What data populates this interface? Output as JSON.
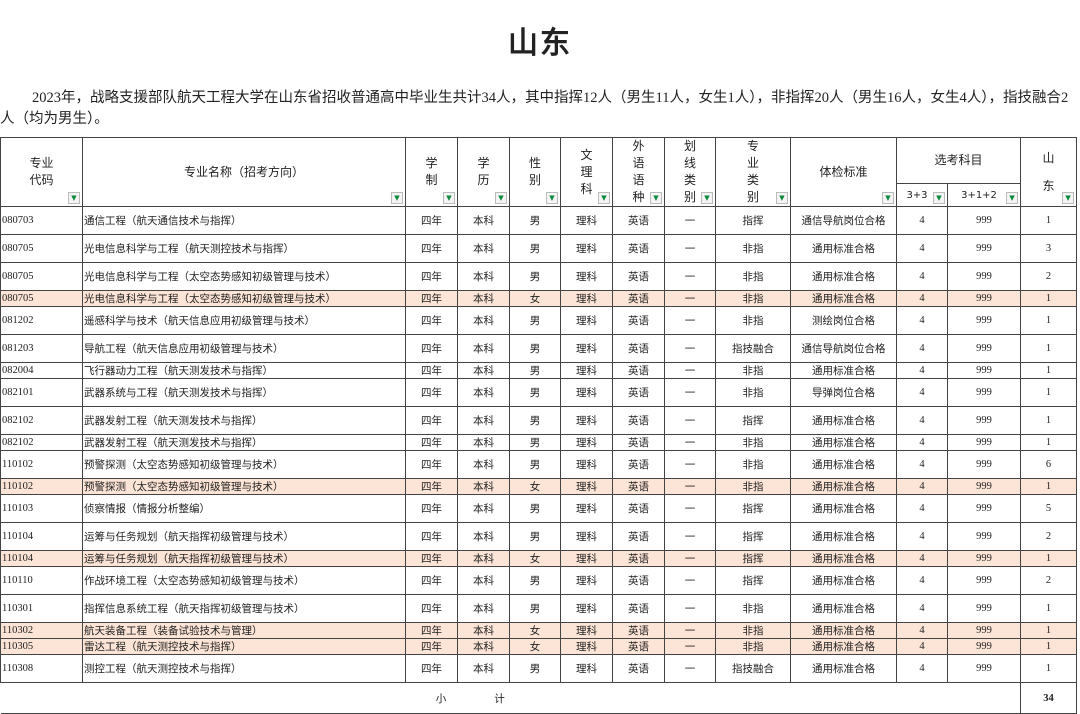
{
  "title": "山东",
  "intro": "2023年，战略支援部队航天工程大学在山东省招收普通高中毕业生共计34人，其中指挥12人（男生11人，女生1人），非指挥20人（男生16人，女生4人），指技融合2人（均为男生）。",
  "headers": {
    "code": "专业代码",
    "name": "专业名称（招考方向）",
    "duration": "学制",
    "degree": "学历",
    "sex": "性别",
    "track": "文理科",
    "language": "外语语种",
    "line": "划线类别",
    "type": "专业类别",
    "physical": "体检标准",
    "subjects": "选考科目",
    "s33": "3+3",
    "s312": "3+1+2",
    "province": "山东"
  },
  "filter_icon": "dropdown-filter-arrow",
  "highlight_color": "#fce4d6",
  "rows": [
    {
      "code": "080703",
      "name": "通信工程（航天通信技术与指挥）",
      "duration": "四年",
      "degree": "本科",
      "sex": "男",
      "track": "理科",
      "language": "英语",
      "line": "一",
      "type": "指挥",
      "physical": "通信导航岗位合格",
      "s33": "4",
      "s312": "999",
      "count": "1"
    },
    {
      "code": "080705",
      "name": "光电信息科学与工程（航天测控技术与指挥）",
      "duration": "四年",
      "degree": "本科",
      "sex": "男",
      "track": "理科",
      "language": "英语",
      "line": "一",
      "type": "非指",
      "physical": "通用标准合格",
      "s33": "4",
      "s312": "999",
      "count": "3"
    },
    {
      "code": "080705",
      "name": "光电信息科学与工程（太空态势感知初级管理与技术）",
      "duration": "四年",
      "degree": "本科",
      "sex": "男",
      "track": "理科",
      "language": "英语",
      "line": "一",
      "type": "非指",
      "physical": "通用标准合格",
      "s33": "4",
      "s312": "999",
      "count": "2"
    },
    {
      "code": "080705",
      "name": "光电信息科学与工程（太空态势感知初级管理与技术）",
      "duration": "四年",
      "degree": "本科",
      "sex": "女",
      "track": "理科",
      "language": "英语",
      "line": "一",
      "type": "非指",
      "physical": "通用标准合格",
      "s33": "4",
      "s312": "999",
      "count": "1"
    },
    {
      "code": "081202",
      "name": "遥感科学与技术（航天信息应用初级管理与技术）",
      "duration": "四年",
      "degree": "本科",
      "sex": "男",
      "track": "理科",
      "language": "英语",
      "line": "一",
      "type": "非指",
      "physical": "测绘岗位合格",
      "s33": "4",
      "s312": "999",
      "count": "1"
    },
    {
      "code": "081203",
      "name": "导航工程（航天信息应用初级管理与技术）",
      "duration": "四年",
      "degree": "本科",
      "sex": "男",
      "track": "理科",
      "language": "英语",
      "line": "一",
      "type": "指技融合",
      "physical": "通信导航岗位合格",
      "s33": "4",
      "s312": "999",
      "count": "1"
    },
    {
      "code": "082004",
      "name": "飞行器动力工程（航天测发技术与指挥）",
      "duration": "四年",
      "degree": "本科",
      "sex": "男",
      "track": "理科",
      "language": "英语",
      "line": "一",
      "type": "非指",
      "physical": "通用标准合格",
      "s33": "4",
      "s312": "999",
      "count": "1"
    },
    {
      "code": "082101",
      "name": "武器系统与工程（航天测发技术与指挥）",
      "duration": "四年",
      "degree": "本科",
      "sex": "男",
      "track": "理科",
      "language": "英语",
      "line": "一",
      "type": "非指",
      "physical": "导弹岗位合格",
      "s33": "4",
      "s312": "999",
      "count": "1"
    },
    {
      "code": "082102",
      "name": "武器发射工程（航天测发技术与指挥）",
      "duration": "四年",
      "degree": "本科",
      "sex": "男",
      "track": "理科",
      "language": "英语",
      "line": "一",
      "type": "指挥",
      "physical": "通用标准合格",
      "s33": "4",
      "s312": "999",
      "count": "1"
    },
    {
      "code": "082102",
      "name": "武器发射工程（航天测发技术与指挥）",
      "duration": "四年",
      "degree": "本科",
      "sex": "男",
      "track": "理科",
      "language": "英语",
      "line": "一",
      "type": "非指",
      "physical": "通用标准合格",
      "s33": "4",
      "s312": "999",
      "count": "1"
    },
    {
      "code": "110102",
      "name": "预警探测（太空态势感知初级管理与技术）",
      "duration": "四年",
      "degree": "本科",
      "sex": "男",
      "track": "理科",
      "language": "英语",
      "line": "一",
      "type": "非指",
      "physical": "通用标准合格",
      "s33": "4",
      "s312": "999",
      "count": "6"
    },
    {
      "code": "110102",
      "name": "预警探测（太空态势感知初级管理与技术）",
      "duration": "四年",
      "degree": "本科",
      "sex": "女",
      "track": "理科",
      "language": "英语",
      "line": "一",
      "type": "非指",
      "physical": "通用标准合格",
      "s33": "4",
      "s312": "999",
      "count": "1"
    },
    {
      "code": "110103",
      "name": "侦察情报（情报分析整编）",
      "duration": "四年",
      "degree": "本科",
      "sex": "男",
      "track": "理科",
      "language": "英语",
      "line": "一",
      "type": "指挥",
      "physical": "通用标准合格",
      "s33": "4",
      "s312": "999",
      "count": "5"
    },
    {
      "code": "110104",
      "name": "运筹与任务规划（航天指挥初级管理与技术）",
      "duration": "四年",
      "degree": "本科",
      "sex": "男",
      "track": "理科",
      "language": "英语",
      "line": "一",
      "type": "指挥",
      "physical": "通用标准合格",
      "s33": "4",
      "s312": "999",
      "count": "2"
    },
    {
      "code": "110104",
      "name": "运筹与任务规划（航天指挥初级管理与技术）",
      "duration": "四年",
      "degree": "本科",
      "sex": "女",
      "track": "理科",
      "language": "英语",
      "line": "一",
      "type": "指挥",
      "physical": "通用标准合格",
      "s33": "4",
      "s312": "999",
      "count": "1"
    },
    {
      "code": "110110",
      "name": "作战环境工程（太空态势感知初级管理与技术）",
      "duration": "四年",
      "degree": "本科",
      "sex": "男",
      "track": "理科",
      "language": "英语",
      "line": "一",
      "type": "指挥",
      "physical": "通用标准合格",
      "s33": "4",
      "s312": "999",
      "count": "2"
    },
    {
      "code": "110301",
      "name": "指挥信息系统工程（航天指挥初级管理与技术）",
      "duration": "四年",
      "degree": "本科",
      "sex": "男",
      "track": "理科",
      "language": "英语",
      "line": "一",
      "type": "非指",
      "physical": "通用标准合格",
      "s33": "4",
      "s312": "999",
      "count": "1"
    },
    {
      "code": "110302",
      "name": "航天装备工程（装备试验技术与管理）",
      "duration": "四年",
      "degree": "本科",
      "sex": "女",
      "track": "理科",
      "language": "英语",
      "line": "一",
      "type": "非指",
      "physical": "通用标准合格",
      "s33": "4",
      "s312": "999",
      "count": "1"
    },
    {
      "code": "110305",
      "name": "雷达工程（航天测控技术与指挥）",
      "duration": "四年",
      "degree": "本科",
      "sex": "女",
      "track": "理科",
      "language": "英语",
      "line": "一",
      "type": "非指",
      "physical": "通用标准合格",
      "s33": "4",
      "s312": "999",
      "count": "1"
    },
    {
      "code": "110308",
      "name": "测控工程（航天测控技术与指挥）",
      "duration": "四年",
      "degree": "本科",
      "sex": "男",
      "track": "理科",
      "language": "英语",
      "line": "一",
      "type": "指技融合",
      "physical": "通用标准合格",
      "s33": "4",
      "s312": "999",
      "count": "1"
    }
  ],
  "subtotal": {
    "label_a": "小",
    "label_b": "计",
    "total": "34"
  }
}
